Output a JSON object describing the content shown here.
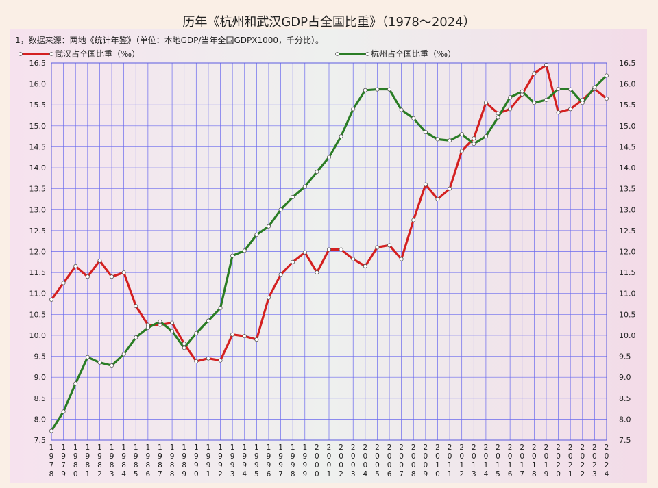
{
  "title": "历年《杭州和武汉GDP占全国比重》（1978～2024）",
  "note": "1，数据来源：两地《统计年鉴》（单位：本地GDP/当年全国GDPX1000，千分比）。",
  "colors": {
    "wuhan": "#d42020",
    "hangzhou": "#2a7d25",
    "grid": "#6a6aee",
    "marker_fill": "#ffffff"
  },
  "chart_data": {
    "type": "line",
    "title": "历年《杭州和武汉GDP占全国比重》（1978～2024）",
    "xlabel": "",
    "ylabel": "",
    "ylim": [
      7.5,
      16.5
    ],
    "yticks": [
      "7.5",
      "8.0",
      "8.5",
      "9.0",
      "9.5",
      "10.0",
      "10.5",
      "11.0",
      "11.5",
      "12.0",
      "12.5",
      "13.0",
      "13.5",
      "14.0",
      "14.5",
      "15.0",
      "15.5",
      "16.0",
      "16.5"
    ],
    "grid": true,
    "legend_position": "top",
    "x": [
      "1978",
      "1979",
      "1980",
      "1981",
      "1982",
      "1983",
      "1984",
      "1985",
      "1986",
      "1987",
      "1988",
      "1989",
      "1990",
      "1991",
      "1992",
      "1993",
      "1994",
      "1995",
      "1996",
      "1997",
      "1998",
      "1999",
      "2000",
      "2001",
      "2002",
      "2003",
      "2004",
      "2005",
      "2006",
      "2007",
      "2008",
      "2009",
      "2010",
      "2011",
      "2012",
      "2013",
      "2014",
      "2015",
      "2016",
      "2017",
      "2018",
      "2019",
      "2020",
      "2021",
      "2022",
      "2023",
      "2024"
    ],
    "series": [
      {
        "name": "武汉占全国比重（‰）",
        "color": "#d42020",
        "values": [
          10.85,
          11.25,
          11.65,
          11.4,
          11.78,
          11.4,
          11.5,
          10.7,
          10.25,
          10.25,
          10.3,
          9.8,
          9.38,
          9.45,
          9.4,
          10.02,
          9.98,
          9.9,
          10.9,
          11.45,
          11.75,
          11.98,
          11.5,
          12.05,
          12.05,
          11.82,
          11.65,
          12.1,
          12.15,
          11.82,
          12.75,
          13.6,
          13.25,
          13.5,
          14.4,
          14.7,
          15.55,
          15.3,
          15.4,
          15.75,
          16.25,
          16.45,
          15.32,
          15.4,
          15.62,
          15.88,
          15.65
        ]
      },
      {
        "name": "杭州占全国比重（‰）",
        "color": "#2a7d25",
        "values": [
          7.72,
          8.18,
          8.85,
          9.48,
          9.35,
          9.28,
          9.55,
          9.95,
          10.18,
          10.33,
          10.1,
          9.7,
          10.05,
          10.35,
          10.65,
          11.9,
          12.02,
          12.4,
          12.6,
          13.0,
          13.3,
          13.55,
          13.9,
          14.25,
          14.75,
          15.4,
          15.85,
          15.87,
          15.87,
          15.38,
          15.18,
          14.85,
          14.68,
          14.65,
          14.8,
          14.57,
          14.75,
          15.2,
          15.68,
          15.82,
          15.55,
          15.62,
          15.88,
          15.87,
          15.55,
          15.92,
          16.2
        ]
      }
    ]
  }
}
